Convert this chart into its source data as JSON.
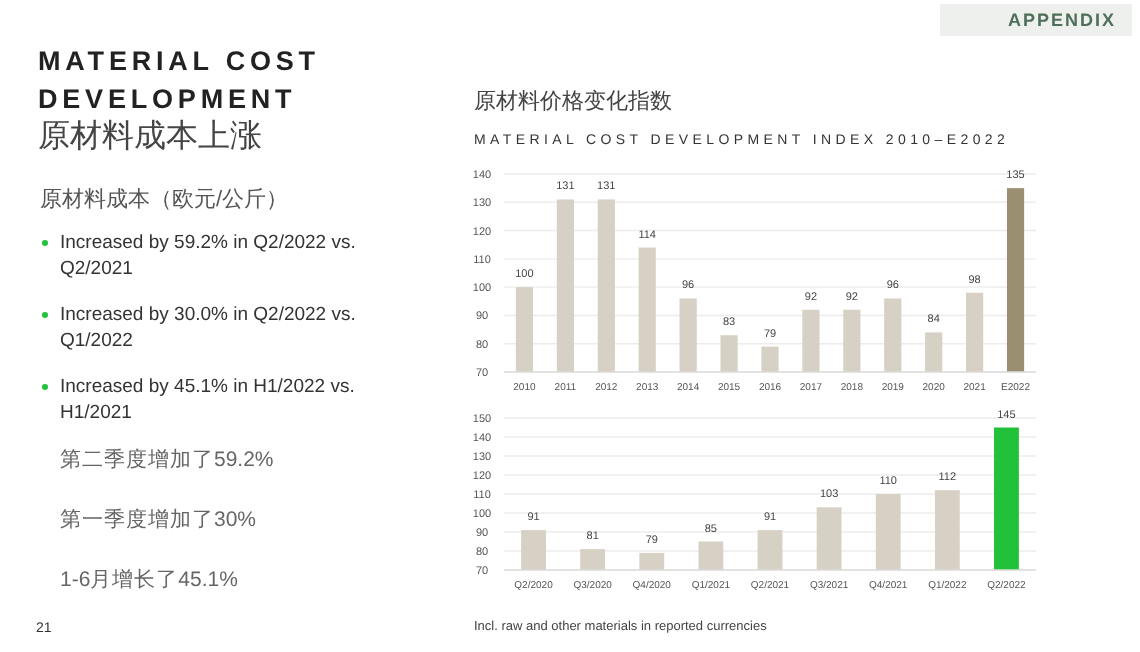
{
  "chart_data": [
    {
      "type": "other",
      "title": "MATERIAL COST DEVELOPMENT",
      "subtitle": "原材料成本上涨",
      "annotations": [
        "原材料成本（欧元/公斤）",
        "Increased by 59.2% in Q2/2022 vs. Q2/2021",
        "Increased by 30.0% in Q2/2022 vs. Q1/2022",
        "Increased by 45.1% in H1/2022 vs. H1/2021",
        "第二季度增加了59.2%",
        "第一季度增加了30%",
        "1-6月增长了45.1%",
        "APPENDIX",
        "21"
      ]
    },
    {
      "type": "bar",
      "title": "原材料价格变化指数",
      "subtitle": "MATERIAL COST DEVELOPMENT INDEX 2010–E2022",
      "categories": [
        "2010",
        "2011",
        "2012",
        "2013",
        "2014",
        "2015",
        "2016",
        "2017",
        "2018",
        "2019",
        "2020",
        "2021",
        "E2022"
      ],
      "values": [
        100,
        131,
        131,
        114,
        96,
        83,
        79,
        92,
        92,
        96,
        84,
        98,
        135
      ],
      "colors": [
        "#d7d0c4",
        "#d7d0c4",
        "#d7d0c4",
        "#d7d0c4",
        "#d7d0c4",
        "#d7d0c4",
        "#d7d0c4",
        "#d7d0c4",
        "#d7d0c4",
        "#d7d0c4",
        "#d7d0c4",
        "#d7d0c4",
        "#9b8f72"
      ],
      "ylim": [
        70,
        140
      ],
      "yticks": [
        70,
        80,
        90,
        100,
        110,
        120,
        130,
        140
      ],
      "grid": "y",
      "data_labels": true
    },
    {
      "type": "bar",
      "categories": [
        "Q2/2020",
        "Q3/2020",
        "Q4/2020",
        "Q1/2021",
        "Q2/2021",
        "Q3/2021",
        "Q4/2021",
        "Q1/2022",
        "Q2/2022"
      ],
      "values": [
        91,
        81,
        79,
        85,
        91,
        103,
        110,
        112,
        145
      ],
      "colors": [
        "#d7d0c4",
        "#d7d0c4",
        "#d7d0c4",
        "#d7d0c4",
        "#d7d0c4",
        "#d7d0c4",
        "#d7d0c4",
        "#d7d0c4",
        "#22c13a"
      ],
      "ylim": [
        70,
        150
      ],
      "yticks": [
        70,
        80,
        90,
        100,
        110,
        120,
        130,
        140,
        150
      ],
      "grid": "y",
      "data_labels": true,
      "annotations": [
        "Incl. raw and other materials in reported currencies"
      ]
    }
  ]
}
